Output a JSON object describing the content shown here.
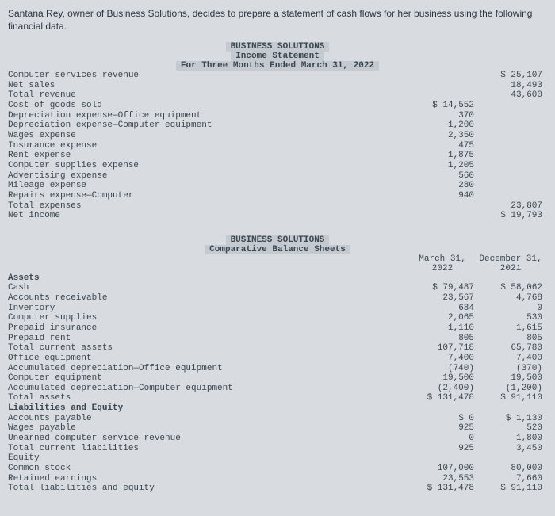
{
  "intro": "Santana Rey, owner of Business Solutions, decides to prepare a statement of cash flows for her business using the following financial data.",
  "income": {
    "title1": "BUSINESS SOLUTIONS",
    "title2": "Income Statement",
    "title3": "For Three Months Ended March 31, 2022",
    "lines": [
      {
        "label": "Computer services revenue",
        "c1": "",
        "c2": "$ 25,107"
      },
      {
        "label": "Net sales",
        "c1": "",
        "c2": "18,493"
      },
      {
        "label": "Total revenue",
        "c1": "",
        "c2": "43,600"
      },
      {
        "label": "Cost of goods sold",
        "c1": "$ 14,552",
        "c2": ""
      },
      {
        "label": "Depreciation expense—Office equipment",
        "c1": "370",
        "c2": ""
      },
      {
        "label": "Depreciation expense—Computer equipment",
        "c1": "1,200",
        "c2": ""
      },
      {
        "label": "Wages expense",
        "c1": "2,350",
        "c2": ""
      },
      {
        "label": "Insurance expense",
        "c1": "475",
        "c2": ""
      },
      {
        "label": "Rent expense",
        "c1": "1,875",
        "c2": ""
      },
      {
        "label": "Computer supplies expense",
        "c1": "1,205",
        "c2": ""
      },
      {
        "label": "Advertising expense",
        "c1": "560",
        "c2": ""
      },
      {
        "label": "Mileage expense",
        "c1": "280",
        "c2": ""
      },
      {
        "label": "Repairs expense—Computer",
        "c1": "940",
        "c2": ""
      },
      {
        "label": "Total expenses",
        "c1": "",
        "c2": "23,807"
      },
      {
        "label": "Net income",
        "c1": "",
        "c2": "$ 19,793"
      }
    ]
  },
  "balance": {
    "title1": "BUSINESS SOLUTIONS",
    "title2": "Comparative Balance Sheets",
    "colhdr1a": "March 31,",
    "colhdr1b": "2022",
    "colhdr2a": "December 31,",
    "colhdr2b": "2021",
    "sections": {
      "assets_hdr": "Assets",
      "assets": [
        {
          "label": "Cash",
          "c1": "$ 79,487",
          "c2": "$ 58,062"
        },
        {
          "label": "Accounts receivable",
          "c1": "23,567",
          "c2": "4,768"
        },
        {
          "label": "Inventory",
          "c1": "684",
          "c2": "0"
        },
        {
          "label": "Computer supplies",
          "c1": "2,065",
          "c2": "530"
        },
        {
          "label": "Prepaid insurance",
          "c1": "1,110",
          "c2": "1,615"
        },
        {
          "label": "Prepaid rent",
          "c1": "805",
          "c2": "805"
        },
        {
          "label": "Total current assets",
          "c1": "107,718",
          "c2": "65,780"
        },
        {
          "label": "Office equipment",
          "c1": "7,400",
          "c2": "7,400"
        },
        {
          "label": "Accumulated depreciation—Office equipment",
          "c1": "(740)",
          "c2": "(370)"
        },
        {
          "label": "Computer equipment",
          "c1": "19,500",
          "c2": "19,500"
        },
        {
          "label": "Accumulated depreciation—Computer equipment",
          "c1": "(2,400)",
          "c2": "(1,200)"
        },
        {
          "label": "Total assets",
          "c1": "$ 131,478",
          "c2": "$ 91,110"
        }
      ],
      "liab_hdr": "Liabilities and Equity",
      "liab": [
        {
          "label": "Accounts payable",
          "c1": "$ 0",
          "c2": "$ 1,130"
        },
        {
          "label": "Wages payable",
          "c1": "925",
          "c2": "520"
        },
        {
          "label": "Unearned computer service revenue",
          "c1": "0",
          "c2": "1,800"
        },
        {
          "label": "Total current liabilities",
          "c1": "925",
          "c2": "3,450"
        },
        {
          "label": "Equity",
          "c1": "",
          "c2": ""
        },
        {
          "label": "Common stock",
          "c1": "107,000",
          "c2": "80,000"
        },
        {
          "label": "Retained earnings",
          "c1": "23,553",
          "c2": "7,660"
        },
        {
          "label": "Total liabilities and equity",
          "c1": "$ 131,478",
          "c2": "$ 91,110"
        }
      ]
    }
  }
}
